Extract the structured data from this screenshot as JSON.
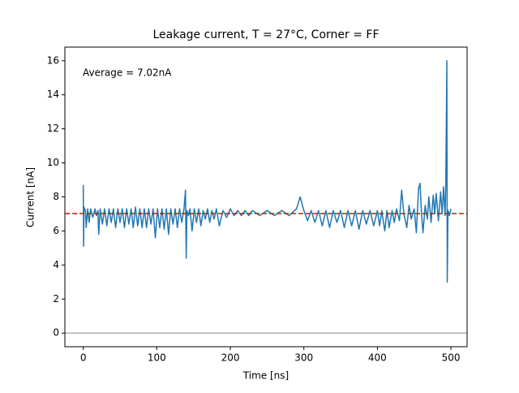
{
  "chart_data": {
    "type": "line",
    "title": "Leakage current, T = 27°C, Corner = FF",
    "xlabel": "Time [ns]",
    "ylabel": "Current [nA]",
    "annotation": "Average = 7.02nA",
    "color": "#1f77b4",
    "x": [
      0,
      0.5,
      1,
      3,
      4,
      6,
      8,
      10,
      13,
      16,
      18,
      20,
      21,
      23,
      26,
      29,
      32,
      35,
      38,
      41,
      44,
      47,
      50,
      53,
      56,
      59,
      62,
      65,
      68,
      71,
      74,
      77,
      80,
      83,
      86,
      89,
      92,
      95,
      98,
      101,
      104,
      107,
      110,
      113,
      116,
      119,
      122,
      125,
      128,
      131,
      134,
      137,
      139,
      140,
      141,
      143,
      145,
      148,
      151,
      154,
      157,
      160,
      163,
      166,
      169,
      172,
      175,
      178,
      181,
      185,
      190,
      195,
      200,
      205,
      210,
      215,
      220,
      225,
      230,
      240,
      250,
      260,
      270,
      280,
      290,
      295,
      300,
      305,
      310,
      315,
      320,
      325,
      330,
      335,
      340,
      345,
      350,
      355,
      360,
      365,
      370,
      375,
      380,
      385,
      390,
      395,
      400,
      403,
      406,
      410,
      413,
      416,
      420,
      423,
      426,
      430,
      433,
      436,
      440,
      443,
      446,
      450,
      453,
      456,
      458,
      460,
      462,
      465,
      468,
      470,
      473,
      476,
      478,
      480,
      483,
      486,
      488,
      490,
      492,
      493,
      494.5,
      495,
      496,
      498,
      500
    ],
    "values": [
      8.7,
      5.1,
      7.4,
      7.2,
      6.2,
      7.3,
      6.5,
      7.3,
      6.8,
      7.3,
      6.9,
      7.2,
      5.8,
      7.3,
      6.4,
      7.3,
      6.3,
      7.3,
      6.5,
      7.3,
      6.2,
      7.3,
      6.5,
      7.3,
      6.2,
      7.3,
      6.4,
      7.3,
      6.2,
      7.4,
      6.3,
      7.3,
      6.2,
      7.3,
      6.2,
      7.3,
      6.4,
      7.3,
      5.6,
      7.3,
      6.2,
      7.3,
      6.1,
      7.3,
      5.8,
      7.3,
      6.4,
      7.3,
      6.2,
      7.3,
      6.5,
      7.3,
      8.4,
      4.4,
      7.2,
      6.9,
      7.3,
      6.0,
      7.3,
      6.5,
      7.3,
      6.3,
      7.2,
      6.7,
      7.3,
      6.5,
      7.2,
      6.7,
      7.3,
      6.3,
      7.2,
      6.8,
      7.3,
      6.9,
      7.2,
      6.9,
      7.2,
      6.9,
      7.2,
      6.9,
      7.2,
      6.9,
      7.2,
      6.9,
      7.3,
      8.0,
      7.2,
      6.6,
      7.2,
      6.5,
      7.2,
      6.3,
      7.2,
      6.2,
      7.2,
      6.5,
      7.2,
      6.2,
      7.2,
      6.3,
      7.2,
      6.1,
      7.2,
      6.4,
      7.2,
      6.3,
      7.2,
      6.3,
      7.2,
      6.0,
      7.2,
      6.2,
      7.2,
      6.5,
      7.3,
      6.6,
      8.4,
      7.0,
      6.2,
      7.5,
      6.7,
      7.3,
      5.9,
      8.5,
      8.8,
      7.0,
      5.9,
      7.5,
      6.7,
      8.0,
      6.5,
      8.1,
      7.0,
      8.2,
      6.6,
      8.3,
      7.0,
      8.6,
      6.9,
      8.6,
      16.0,
      3.0,
      7.2,
      6.9,
      7.3
    ],
    "hlines": [
      {
        "y": 0,
        "color": "#b0b0b0",
        "style": "solid"
      },
      {
        "y": 7.02,
        "color": "#ff0000",
        "style": "dashed"
      }
    ],
    "xlim": [
      -25,
      522
    ],
    "ylim": [
      -0.8,
      16.8
    ],
    "xticks": [
      0,
      100,
      200,
      300,
      400,
      500
    ],
    "yticks": [
      0,
      2,
      4,
      6,
      8,
      10,
      12,
      14,
      16
    ]
  }
}
